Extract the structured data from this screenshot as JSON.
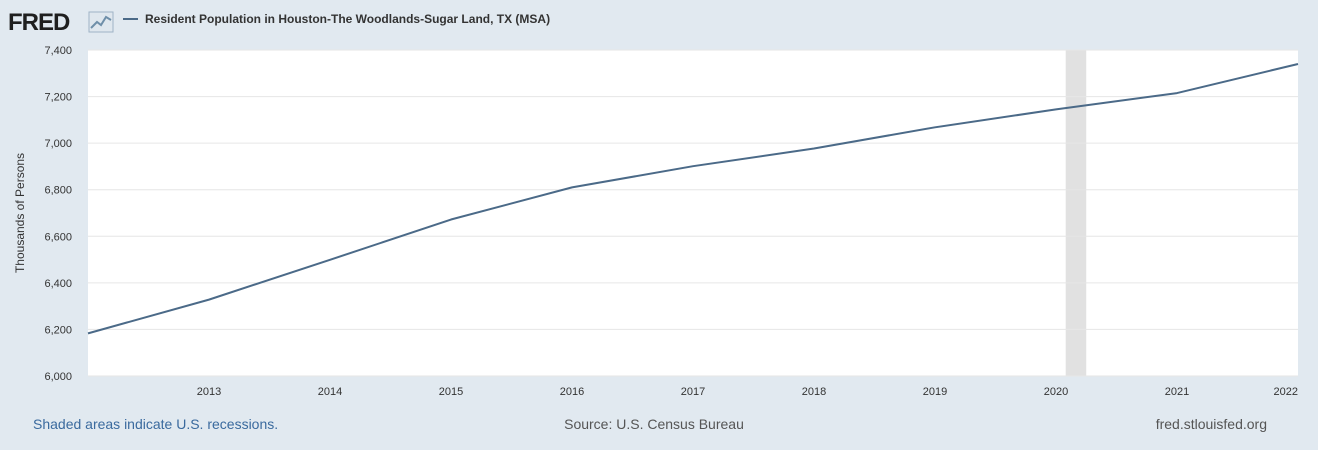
{
  "header": {
    "logo_text": "FRED",
    "legend_label": "Resident Population in Houston-The Woodlands-Sugar Land, TX (MSA)"
  },
  "footer": {
    "recession_note": "Shaded areas indicate U.S. recessions.",
    "source": "Source: U.S. Census Bureau",
    "site": "fred.stlouisfed.org"
  },
  "colors": {
    "background": "#e1e9f0",
    "plot_background": "#ffffff",
    "series": "#4b6a88",
    "recession": "#e1e1e1",
    "gridline": "#e6e6e6",
    "footer_link": "#3a6a9e",
    "footer_text": "#555555"
  },
  "chart_data": {
    "type": "line",
    "xlabel": "",
    "ylabel": "Thousands of Persons",
    "xlim": [
      2012.0,
      2022.0
    ],
    "ylim": [
      6000,
      7400
    ],
    "yticks": [
      6000,
      6200,
      6400,
      6600,
      6800,
      7000,
      7200,
      7400
    ],
    "ytick_labels": [
      "6,000",
      "6,200",
      "6,400",
      "6,600",
      "6,800",
      "7,000",
      "7,200",
      "7,400"
    ],
    "xticks": [
      2013,
      2014,
      2015,
      2016,
      2017,
      2018,
      2019,
      2020,
      2021,
      2022
    ],
    "xtick_labels": [
      "2013",
      "2014",
      "2015",
      "2016",
      "2017",
      "2018",
      "2019",
      "2020",
      "2021",
      "2022"
    ],
    "grid": true,
    "recessions": [
      {
        "start": 2020.08,
        "end": 2020.25
      }
    ],
    "series": [
      {
        "name": "Resident Population in Houston-The Woodlands-Sugar Land, TX (MSA)",
        "x": [
          2012,
          2013,
          2014,
          2015,
          2016,
          2017,
          2018,
          2019,
          2020,
          2021,
          2022
        ],
        "y": [
          6183,
          6328,
          6499,
          6672,
          6810,
          6901,
          6977,
          7068,
          7145,
          7215,
          7340
        ]
      }
    ]
  }
}
